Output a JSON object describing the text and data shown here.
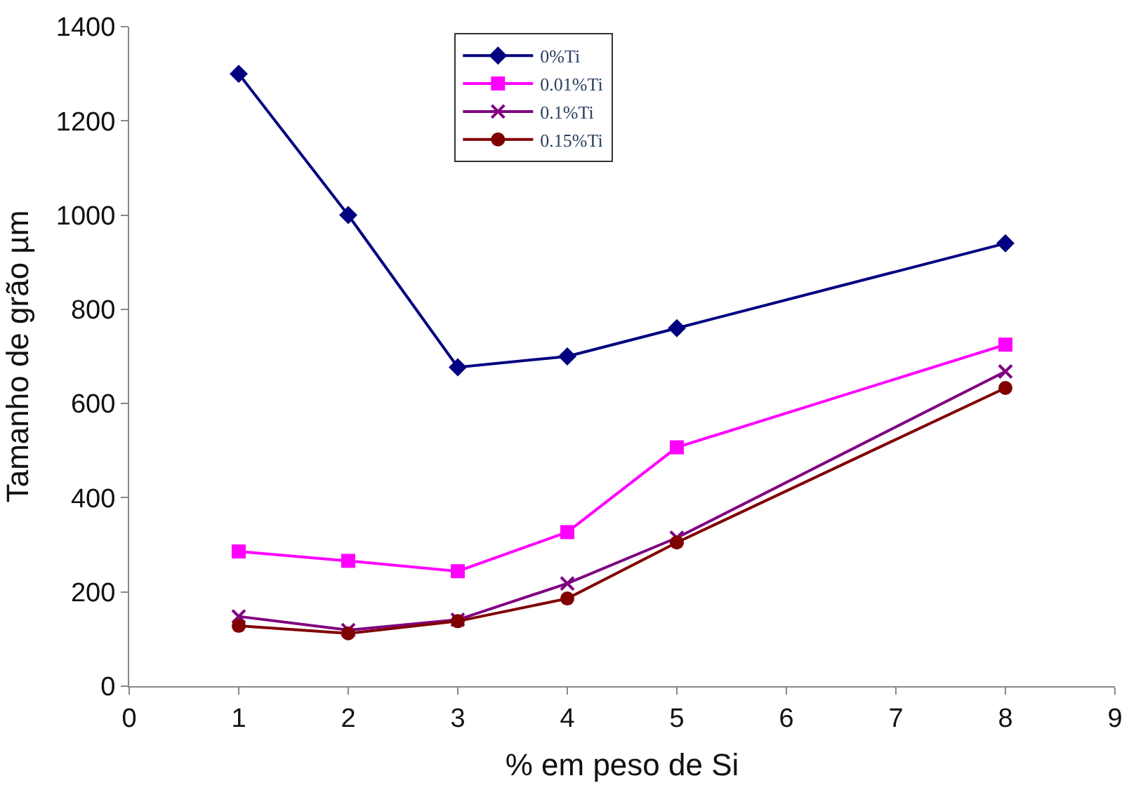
{
  "chart_data": {
    "type": "line",
    "xlabel": "% em peso de Si",
    "ylabel": "Tamanho de grão µm",
    "x": [
      1,
      2,
      3,
      4,
      5,
      8
    ],
    "series": [
      {
        "name": "0%Ti",
        "color": "#000080",
        "marker": "diamond",
        "values": [
          1300,
          1000,
          677,
          700,
          760,
          940
        ]
      },
      {
        "name": "0.01%Ti",
        "color": "#ff00ff",
        "marker": "square",
        "values": [
          286,
          266,
          244,
          327,
          507,
          725
        ]
      },
      {
        "name": "0.1%Ti",
        "color": "#800080",
        "marker": "cross",
        "values": [
          148,
          119,
          141,
          218,
          315,
          668
        ]
      },
      {
        "name": "0.15%Ti",
        "color": "#800000",
        "marker": "circle",
        "values": [
          128,
          112,
          138,
          186,
          305,
          633
        ]
      }
    ],
    "xlim": [
      0,
      9
    ],
    "xticks": [
      0,
      1,
      2,
      3,
      4,
      5,
      6,
      7,
      8,
      9
    ],
    "ylim": [
      0,
      1400
    ],
    "yticks": [
      0,
      200,
      400,
      600,
      800,
      1000,
      1200,
      1400
    ],
    "legend": "top",
    "line_style": "solid"
  }
}
